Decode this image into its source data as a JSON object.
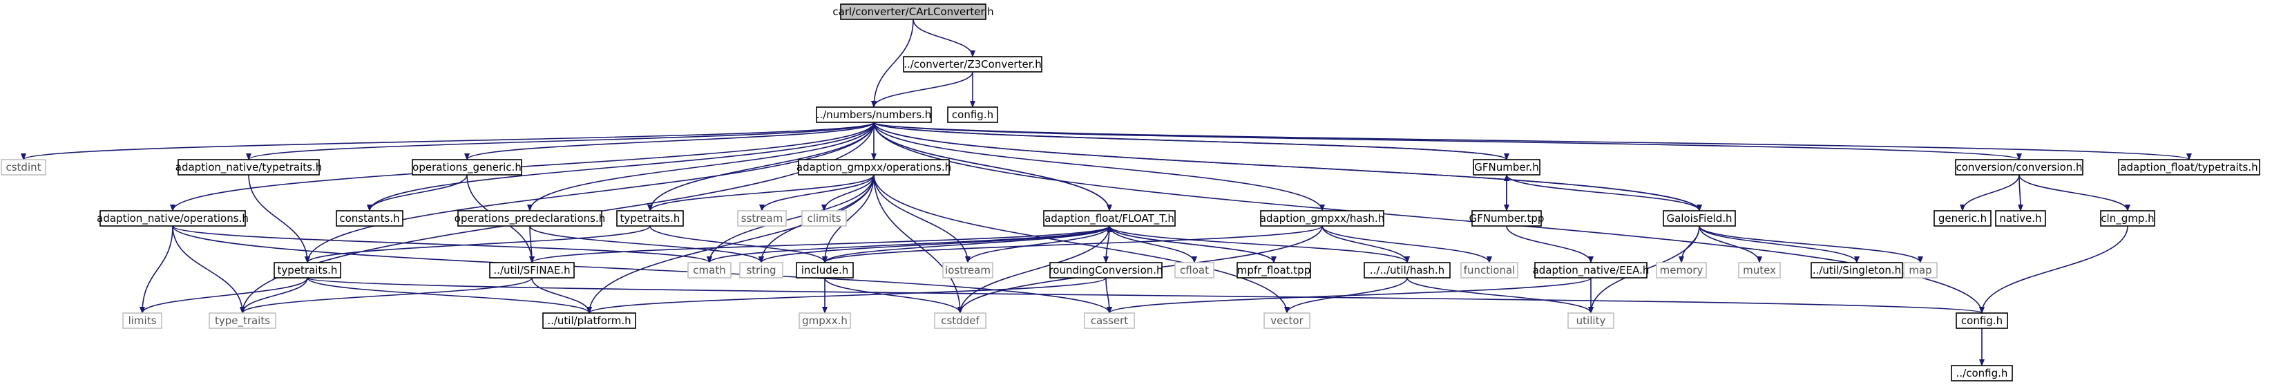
{
  "colors": {
    "edge": "#191970",
    "root_fill": "#bfbfbf",
    "root_stroke": "#000000",
    "node_stroke": "#000000",
    "system_stroke": "#bfbfbf",
    "text": "#000000",
    "system_text": "#555555"
  },
  "nodes": [
    {
      "id": "root",
      "label": "carl/converter/CArLConverter.h",
      "kind": "root"
    },
    {
      "id": "z3conv",
      "label": "../converter/Z3Converter.h",
      "kind": "file"
    },
    {
      "id": "numbers",
      "label": "../numbers/numbers.h",
      "kind": "file"
    },
    {
      "id": "config_top",
      "label": "config.h",
      "kind": "file"
    },
    {
      "id": "cstdint",
      "label": "cstdint",
      "kind": "system"
    },
    {
      "id": "an_typetraits",
      "label": "adaption_native/typetraits.h",
      "kind": "file"
    },
    {
      "id": "ops_generic",
      "label": "operations_generic.h",
      "kind": "file"
    },
    {
      "id": "ag_operations",
      "label": "adaption_gmpxx/operations.h",
      "kind": "file"
    },
    {
      "id": "gfnumber",
      "label": "GFNumber.h",
      "kind": "file"
    },
    {
      "id": "conv_conversion",
      "label": "conversion/conversion.h",
      "kind": "file"
    },
    {
      "id": "af_typetraits",
      "label": "adaption_float/typetraits.h",
      "kind": "file"
    },
    {
      "id": "an_operations",
      "label": "adaption_native/operations.h",
      "kind": "file"
    },
    {
      "id": "constants",
      "label": "constants.h",
      "kind": "file"
    },
    {
      "id": "ops_predecl",
      "label": "operations_predeclarations.h",
      "kind": "file"
    },
    {
      "id": "typetraits_mid",
      "label": "typetraits.h",
      "kind": "file"
    },
    {
      "id": "sstream",
      "label": "sstream",
      "kind": "system"
    },
    {
      "id": "climits",
      "label": "climits",
      "kind": "system"
    },
    {
      "id": "float_t",
      "label": "adaption_float/FLOAT_T.h",
      "kind": "file"
    },
    {
      "id": "ag_hash",
      "label": "adaption_gmpxx/hash.h",
      "kind": "file"
    },
    {
      "id": "gfnumber_tpp",
      "label": "GFNumber.tpp",
      "kind": "file"
    },
    {
      "id": "galoisfield",
      "label": "GaloisField.h",
      "kind": "file"
    },
    {
      "id": "generic",
      "label": "generic.h",
      "kind": "file"
    },
    {
      "id": "native",
      "label": "native.h",
      "kind": "file"
    },
    {
      "id": "cln_gmp",
      "label": "cln_gmp.h",
      "kind": "file"
    },
    {
      "id": "typetraits_low",
      "label": "typetraits.h",
      "kind": "file"
    },
    {
      "id": "sfinae",
      "label": "../util/SFINAE.h",
      "kind": "file"
    },
    {
      "id": "cmath",
      "label": "cmath",
      "kind": "system"
    },
    {
      "id": "string",
      "label": "string",
      "kind": "system"
    },
    {
      "id": "include",
      "label": "include.h",
      "kind": "file"
    },
    {
      "id": "iostream",
      "label": "iostream",
      "kind": "system"
    },
    {
      "id": "rounding",
      "label": "roundingConversion.h",
      "kind": "file"
    },
    {
      "id": "cfloat",
      "label": "cfloat",
      "kind": "system"
    },
    {
      "id": "mpfr_float",
      "label": "mpfr_float.tpp",
      "kind": "file"
    },
    {
      "id": "util_hash",
      "label": "../../util/hash.h",
      "kind": "file"
    },
    {
      "id": "functional",
      "label": "functional",
      "kind": "system"
    },
    {
      "id": "an_eea",
      "label": "adaption_native/EEA.h",
      "kind": "file"
    },
    {
      "id": "memory",
      "label": "memory",
      "kind": "system"
    },
    {
      "id": "mutex",
      "label": "mutex",
      "kind": "system"
    },
    {
      "id": "singleton",
      "label": "../util/Singleton.h",
      "kind": "file"
    },
    {
      "id": "map",
      "label": "map",
      "kind": "system"
    },
    {
      "id": "limits",
      "label": "limits",
      "kind": "system"
    },
    {
      "id": "type_traits",
      "label": "type_traits",
      "kind": "system"
    },
    {
      "id": "platform",
      "label": "../util/platform.h",
      "kind": "file"
    },
    {
      "id": "gmpxx",
      "label": "gmpxx.h",
      "kind": "system"
    },
    {
      "id": "cstddef",
      "label": "cstddef",
      "kind": "system"
    },
    {
      "id": "cassert",
      "label": "cassert",
      "kind": "system"
    },
    {
      "id": "vector",
      "label": "vector",
      "kind": "system"
    },
    {
      "id": "utility",
      "label": "utility",
      "kind": "system"
    },
    {
      "id": "config_low",
      "label": "config.h",
      "kind": "file"
    },
    {
      "id": "config_bottom",
      "label": "../config.h",
      "kind": "file"
    }
  ],
  "edges": [
    [
      "root",
      "z3conv"
    ],
    [
      "root",
      "numbers"
    ],
    [
      "z3conv",
      "numbers"
    ],
    [
      "z3conv",
      "config_top"
    ],
    [
      "numbers",
      "cstdint"
    ],
    [
      "numbers",
      "an_typetraits"
    ],
    [
      "numbers",
      "ops_generic"
    ],
    [
      "numbers",
      "ag_operations"
    ],
    [
      "numbers",
      "gfnumber"
    ],
    [
      "numbers",
      "conv_conversion"
    ],
    [
      "numbers",
      "af_typetraits"
    ],
    [
      "numbers",
      "an_operations"
    ],
    [
      "numbers",
      "constants"
    ],
    [
      "numbers",
      "ops_predecl"
    ],
    [
      "numbers",
      "typetraits_mid"
    ],
    [
      "numbers",
      "float_t"
    ],
    [
      "numbers",
      "ag_hash"
    ],
    [
      "numbers",
      "galoisfield"
    ],
    [
      "numbers",
      "typetraits_low"
    ],
    [
      "numbers",
      "type_traits"
    ],
    [
      "numbers",
      "config_low"
    ],
    [
      "an_typetraits",
      "typetraits_low"
    ],
    [
      "ops_generic",
      "constants"
    ],
    [
      "ops_generic",
      "sfinae"
    ],
    [
      "ag_operations",
      "typetraits_mid"
    ],
    [
      "ag_operations",
      "sstream"
    ],
    [
      "ag_operations",
      "climits"
    ],
    [
      "ag_operations",
      "cmath"
    ],
    [
      "ag_operations",
      "string"
    ],
    [
      "ag_operations",
      "include"
    ],
    [
      "ag_operations",
      "iostream"
    ],
    [
      "ag_operations",
      "platform"
    ],
    [
      "ag_operations",
      "cstddef"
    ],
    [
      "ag_operations",
      "vector"
    ],
    [
      "gfnumber",
      "numbers"
    ],
    [
      "gfnumber",
      "gfnumber_tpp"
    ],
    [
      "gfnumber",
      "galoisfield"
    ],
    [
      "gfnumber_tpp",
      "gfnumber"
    ],
    [
      "gfnumber_tpp",
      "an_eea"
    ],
    [
      "galoisfield",
      "numbers"
    ],
    [
      "galoisfield",
      "memory"
    ],
    [
      "galoisfield",
      "mutex"
    ],
    [
      "galoisfield",
      "singleton"
    ],
    [
      "galoisfield",
      "map"
    ],
    [
      "galoisfield",
      "utility"
    ],
    [
      "conv_conversion",
      "generic"
    ],
    [
      "conv_conversion",
      "native"
    ],
    [
      "conv_conversion",
      "cln_gmp"
    ],
    [
      "cln_gmp",
      "config_low"
    ],
    [
      "an_operations",
      "cmath"
    ],
    [
      "an_operations",
      "limits"
    ],
    [
      "an_operations",
      "type_traits"
    ],
    [
      "an_operations",
      "cassert"
    ],
    [
      "ops_predecl",
      "sfinae"
    ],
    [
      "ops_predecl",
      "string"
    ],
    [
      "typetraits_mid",
      "typetraits_low"
    ],
    [
      "typetraits_mid",
      "include"
    ],
    [
      "float_t",
      "numbers"
    ],
    [
      "float_t",
      "sfinae"
    ],
    [
      "float_t",
      "cmath"
    ],
    [
      "float_t",
      "string"
    ],
    [
      "float_t",
      "include"
    ],
    [
      "float_t",
      "iostream"
    ],
    [
      "float_t",
      "rounding"
    ],
    [
      "float_t",
      "cfloat"
    ],
    [
      "float_t",
      "mpfr_float"
    ],
    [
      "float_t",
      "util_hash"
    ],
    [
      "float_t",
      "cstddef"
    ],
    [
      "mpfr_float",
      "float_t"
    ],
    [
      "ag_hash",
      "include"
    ],
    [
      "ag_hash",
      "util_hash"
    ],
    [
      "ag_hash",
      "functional"
    ],
    [
      "ag_hash",
      "cstddef"
    ],
    [
      "typetraits_low",
      "limits"
    ],
    [
      "typetraits_low",
      "type_traits"
    ],
    [
      "typetraits_low",
      "platform"
    ],
    [
      "typetraits_low",
      "config_low"
    ],
    [
      "sfinae",
      "type_traits"
    ],
    [
      "sfinae",
      "platform"
    ],
    [
      "include",
      "gmpxx"
    ],
    [
      "include",
      "cstddef"
    ],
    [
      "rounding",
      "cassert"
    ],
    [
      "rounding",
      "platform"
    ],
    [
      "util_hash",
      "vector"
    ],
    [
      "util_hash",
      "utility"
    ],
    [
      "an_eea",
      "cassert"
    ],
    [
      "an_eea",
      "utility"
    ],
    [
      "config_low",
      "config_bottom"
    ]
  ]
}
